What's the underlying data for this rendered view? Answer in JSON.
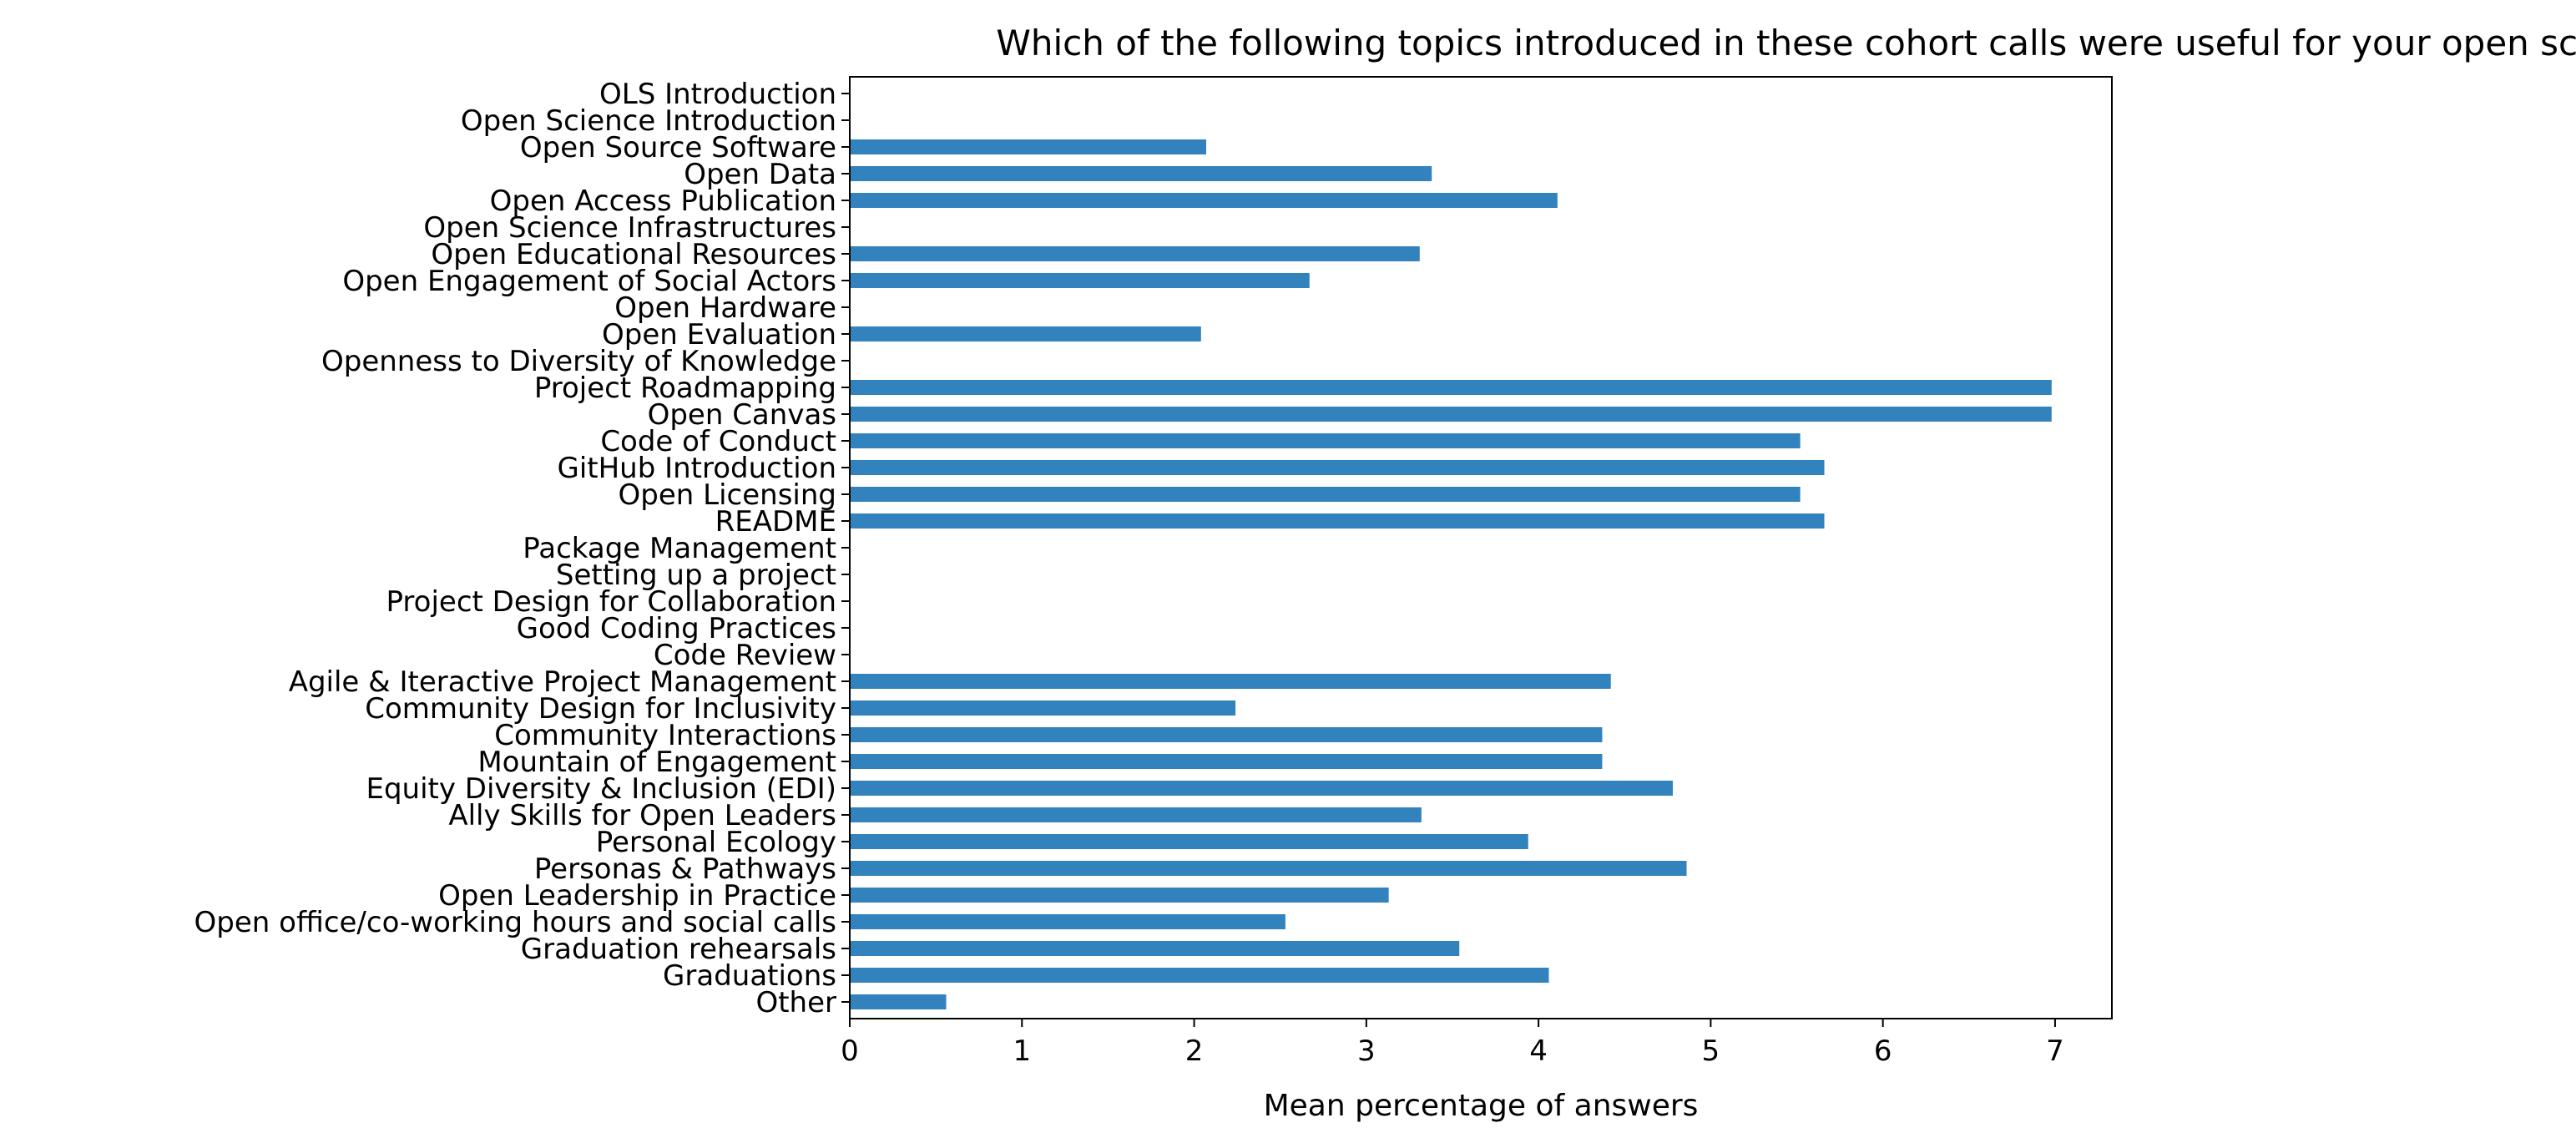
{
  "chart_data": {
    "type": "bar",
    "orientation": "horizontal",
    "title": "Which of the following topics introduced in these cohort calls were useful for your open science journey?",
    "xlabel": "Mean percentage of answers",
    "ylabel": "",
    "xlim": [
      0,
      7.33
    ],
    "xticks": [
      0,
      1,
      2,
      3,
      4,
      5,
      6,
      7
    ],
    "xtick_labels": [
      "0",
      "1",
      "2",
      "3",
      "4",
      "5",
      "6",
      "7"
    ],
    "grid": false,
    "legend": "none",
    "bar_color": "#3182bd",
    "categories": [
      "OLS Introduction",
      "Open Science Introduction",
      "Open Source Software",
      "Open Data",
      "Open Access Publication",
      "Open Science Infrastructures",
      "Open Educational Resources",
      "Open Engagement of Social Actors",
      "Open Hardware",
      "Open Evaluation",
      "Openness to Diversity of Knowledge",
      "Project Roadmapping",
      "Open Canvas",
      "Code of Conduct",
      "GitHub Introduction",
      "Open Licensing",
      "README",
      "Package Management",
      "Setting up a project",
      "Project Design for Collaboration",
      "Good Coding Practices",
      "Code Review",
      "Agile & Iteractive Project Management",
      "Community Design for Inclusivity",
      "Community Interactions",
      "Mountain of Engagement",
      "Equity Diversity & Inclusion (EDI)",
      "Ally Skills for Open Leaders",
      "Personal Ecology",
      "Personas & Pathways",
      "Open Leadership in Practice",
      "Open office/co-working hours and social calls",
      "Graduation rehearsals",
      "Graduations",
      "Other"
    ],
    "values": [
      0,
      0,
      2.07,
      3.38,
      4.11,
      0,
      3.31,
      2.67,
      0,
      2.04,
      0,
      6.98,
      6.98,
      5.52,
      5.66,
      5.52,
      5.66,
      0,
      0,
      0,
      0,
      0,
      4.42,
      2.24,
      4.37,
      4.37,
      4.78,
      3.32,
      3.94,
      4.86,
      3.13,
      2.53,
      3.54,
      4.06,
      0.56
    ]
  }
}
